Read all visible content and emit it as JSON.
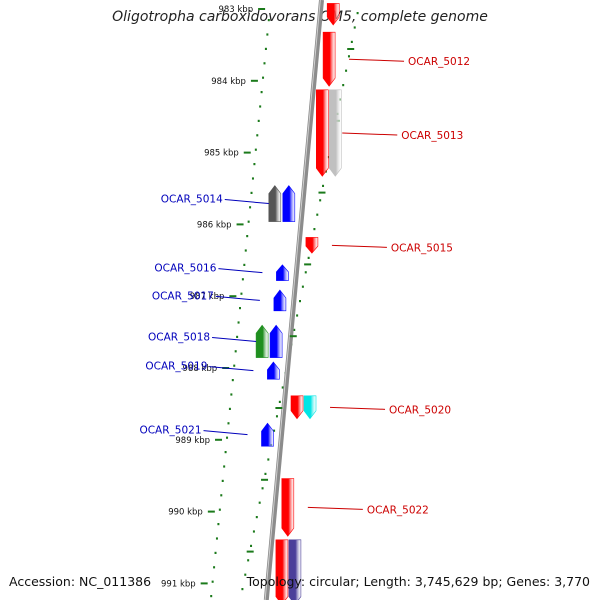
{
  "title": "Oligotropha carboxidovorans OM5, complete genome",
  "footer": {
    "accession": "Accession: NC_011386",
    "topology": "Topology: circular; Length: 3,745,629 bp; Genes: 3,770"
  },
  "colors": {
    "forward": "#ff0000",
    "reverse": "#0000ff",
    "backbone": "#8c8c8c",
    "ticks": "#1b7a1b",
    "gray_gene": "#c0c0c0",
    "dark_gene": "#555555",
    "green_gene": "#1f8f1f",
    "cyan_gene": "#00e5e5",
    "purple_gene": "#4b3f9a"
  },
  "ticks": [
    {
      "label": "983 kbp",
      "kbp": 983
    },
    {
      "label": "984 kbp",
      "kbp": 984
    },
    {
      "label": "985 kbp",
      "kbp": 985
    },
    {
      "label": "986 kbp",
      "kbp": 986
    },
    {
      "label": "987 kbp",
      "kbp": 987
    },
    {
      "label": "988 kbp",
      "kbp": 988
    },
    {
      "label": "989 kbp",
      "kbp": 989
    },
    {
      "label": "990 kbp",
      "kbp": 990
    },
    {
      "label": "991 kbp",
      "kbp": 991
    }
  ],
  "genes": [
    {
      "kbp_start": 982.95,
      "kbp_end": 983.25,
      "strand": "+",
      "color": "#ff0000"
    },
    {
      "kbp_start": 983.35,
      "kbp_end": 984.1,
      "strand": "+",
      "color": "#ff0000",
      "label": "OCAR_5012"
    },
    {
      "kbp_start": 984.15,
      "kbp_end": 985.35,
      "strand": "+",
      "color": "#ff0000",
      "label": "OCAR_5013"
    },
    {
      "kbp_start": 984.15,
      "kbp_end": 985.35,
      "strand": "+",
      "color": "#c0c0c0",
      "lane": 2
    },
    {
      "kbp_start": 985.48,
      "kbp_end": 985.98,
      "strand": "-",
      "color": "#555555",
      "lane": 2
    },
    {
      "kbp_start": 985.48,
      "kbp_end": 985.98,
      "strand": "-",
      "color": "#0000ff",
      "label": "OCAR_5014"
    },
    {
      "kbp_start": 986.2,
      "kbp_end": 986.42,
      "strand": "+",
      "color": "#ff0000",
      "label": "OCAR_5015"
    },
    {
      "kbp_start": 986.58,
      "kbp_end": 986.8,
      "strand": "-",
      "color": "#0000ff",
      "label": "OCAR_5016"
    },
    {
      "kbp_start": 986.93,
      "kbp_end": 987.22,
      "strand": "-",
      "color": "#0000ff",
      "label": "OCAR_5017"
    },
    {
      "kbp_start": 987.42,
      "kbp_end": 987.87,
      "strand": "-",
      "color": "#1f8f1f",
      "lane": 2
    },
    {
      "kbp_start": 987.42,
      "kbp_end": 987.87,
      "strand": "-",
      "color": "#0000ff",
      "label": "OCAR_5018"
    },
    {
      "kbp_start": 987.93,
      "kbp_end": 988.17,
      "strand": "-",
      "color": "#0000ff",
      "label": "OCAR_5019"
    },
    {
      "kbp_start": 988.4,
      "kbp_end": 988.72,
      "strand": "+",
      "color": "#ff0000"
    },
    {
      "kbp_start": 988.4,
      "kbp_end": 988.72,
      "strand": "+",
      "color": "#00e5e5",
      "lane": 2,
      "label": "OCAR_5020"
    },
    {
      "kbp_start": 988.78,
      "kbp_end": 989.1,
      "strand": "-",
      "color": "#0000ff",
      "label": "OCAR_5021"
    },
    {
      "kbp_start": 989.55,
      "kbp_end": 990.35,
      "strand": "+",
      "color": "#ff0000",
      "label": "OCAR_5022"
    },
    {
      "kbp_start": 990.4,
      "kbp_end": 991.3,
      "strand": "+",
      "color": "#ff0000"
    },
    {
      "kbp_start": 990.4,
      "kbp_end": 991.3,
      "strand": "+",
      "color": "#4b3f9a",
      "lane": 2
    }
  ]
}
